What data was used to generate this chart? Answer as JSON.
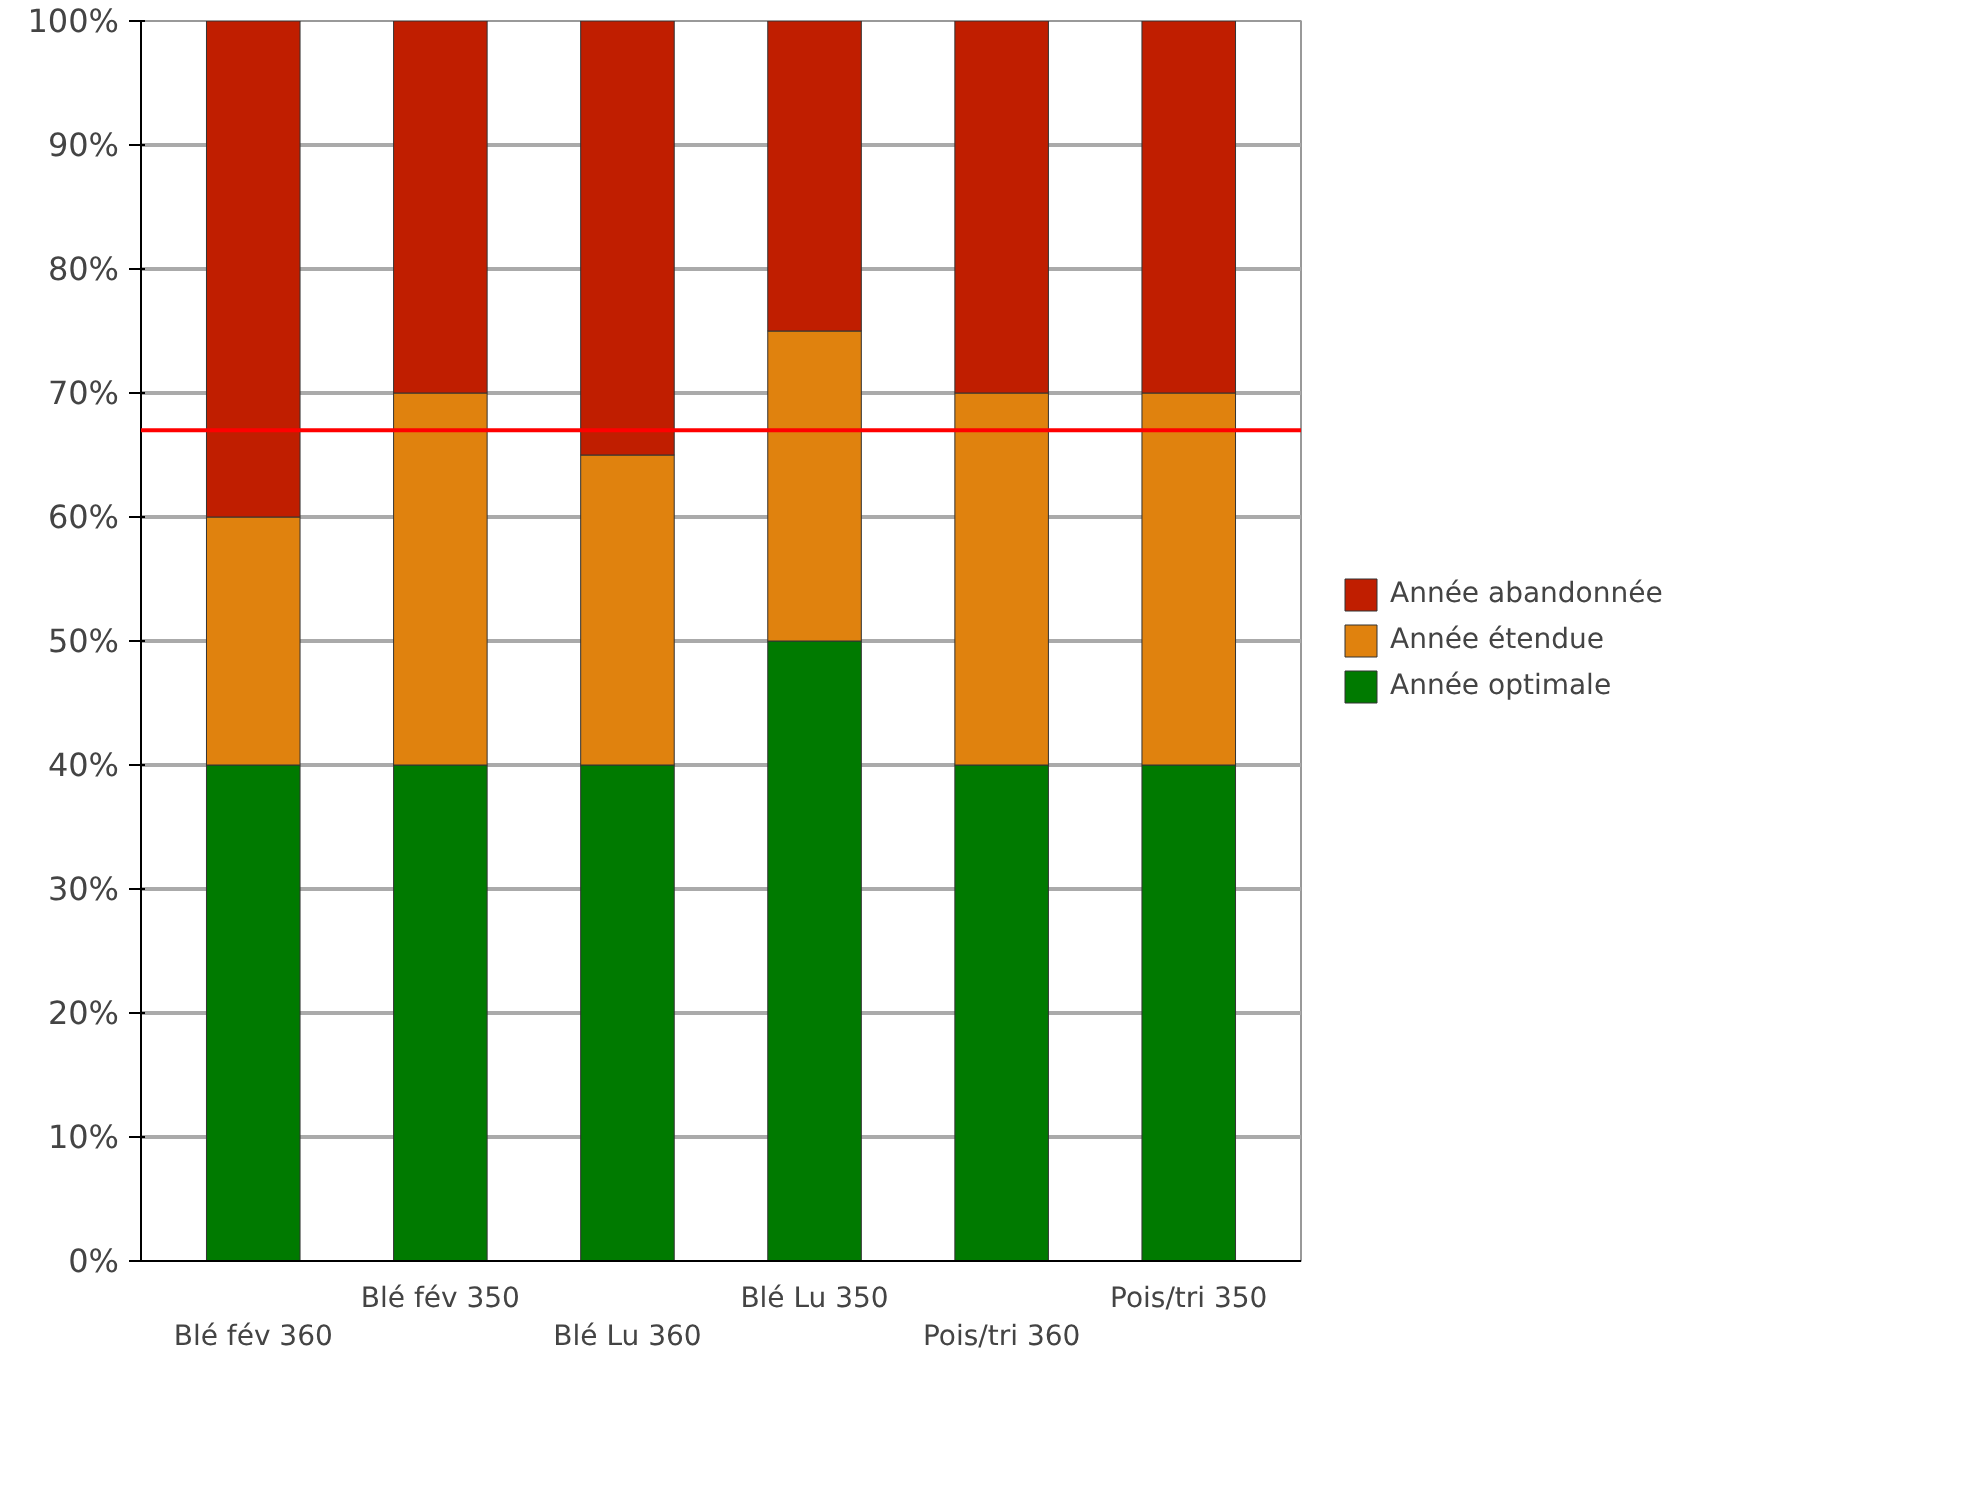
{
  "chart_data": {
    "type": "bar",
    "stacked": true,
    "categories": [
      "Blé fév 360",
      "Blé fév 350",
      "Blé Lu 360",
      "Blé Lu 350",
      "Pois/tri 360",
      "Pois/tri 350"
    ],
    "series": [
      {
        "name": "Année optimale",
        "color": "#007a00",
        "values": [
          40,
          40,
          40,
          50,
          40,
          40
        ]
      },
      {
        "name": "Année étendue",
        "color": "#e0820e",
        "values": [
          20,
          30,
          25,
          25,
          30,
          30
        ]
      },
      {
        "name": "Année abandonnée",
        "color": "#c01e00",
        "values": [
          40,
          30,
          35,
          25,
          30,
          30
        ]
      }
    ],
    "ylim": [
      0,
      100
    ],
    "yticks": [
      {
        "value": 0,
        "label": "0%"
      },
      {
        "value": 10,
        "label": "10%"
      },
      {
        "value": 20,
        "label": "20%"
      },
      {
        "value": 30,
        "label": "30%"
      },
      {
        "value": 40,
        "label": "40%"
      },
      {
        "value": 50,
        "label": "50%"
      },
      {
        "value": 60,
        "label": "60%"
      },
      {
        "value": 70,
        "label": "70%"
      },
      {
        "value": 80,
        "label": "80%"
      },
      {
        "value": 90,
        "label": "90%"
      },
      {
        "value": 100,
        "label": "100%"
      }
    ],
    "ref_lines": [
      {
        "axis": "y",
        "value": 67,
        "color": "#ff0000"
      }
    ],
    "grid": "y",
    "legend": "right"
  }
}
